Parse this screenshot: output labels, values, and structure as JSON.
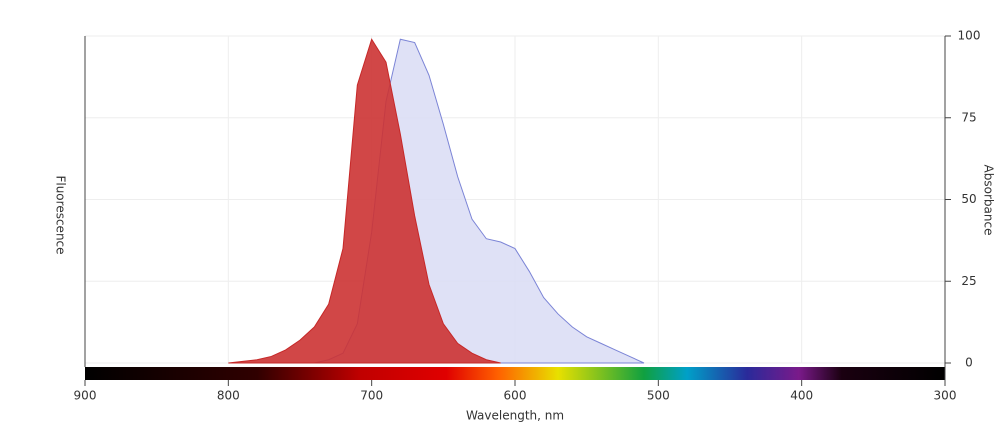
{
  "chart_data": {
    "type": "area",
    "xlabel": "Wavelength, nm",
    "x": [
      510,
      520,
      530,
      540,
      550,
      560,
      570,
      580,
      590,
      600,
      610,
      620,
      630,
      640,
      650,
      660,
      670,
      680,
      690,
      700,
      710,
      720,
      730,
      740,
      750,
      760,
      770,
      780,
      790,
      800
    ],
    "series": [
      {
        "name": "Absorbance",
        "color": "#7b84d6",
        "fill": "#d9dcf4",
        "values": [
          0,
          2,
          4,
          6,
          8,
          11,
          15,
          20,
          28,
          35,
          37,
          38,
          44,
          57,
          73,
          88,
          98,
          99,
          80,
          40,
          12,
          3,
          1,
          0,
          null,
          null,
          null,
          null,
          null,
          null
        ]
      },
      {
        "name": "Fluorescence",
        "color": "#c62828",
        "fill": "#cc3333",
        "values": [
          null,
          null,
          null,
          null,
          null,
          null,
          null,
          null,
          null,
          null,
          0,
          1,
          3,
          6,
          12,
          24,
          45,
          70,
          92,
          99,
          85,
          35,
          18,
          11,
          7,
          4,
          2,
          1,
          0.5,
          0
        ]
      }
    ],
    "xlim": [
      300,
      900
    ],
    "xticks": [
      300,
      400,
      500,
      600,
      700,
      800,
      900
    ],
    "ylim": [
      0,
      100
    ],
    "yticks": [
      0,
      25,
      50,
      75,
      100
    ],
    "grid": true
  }
}
